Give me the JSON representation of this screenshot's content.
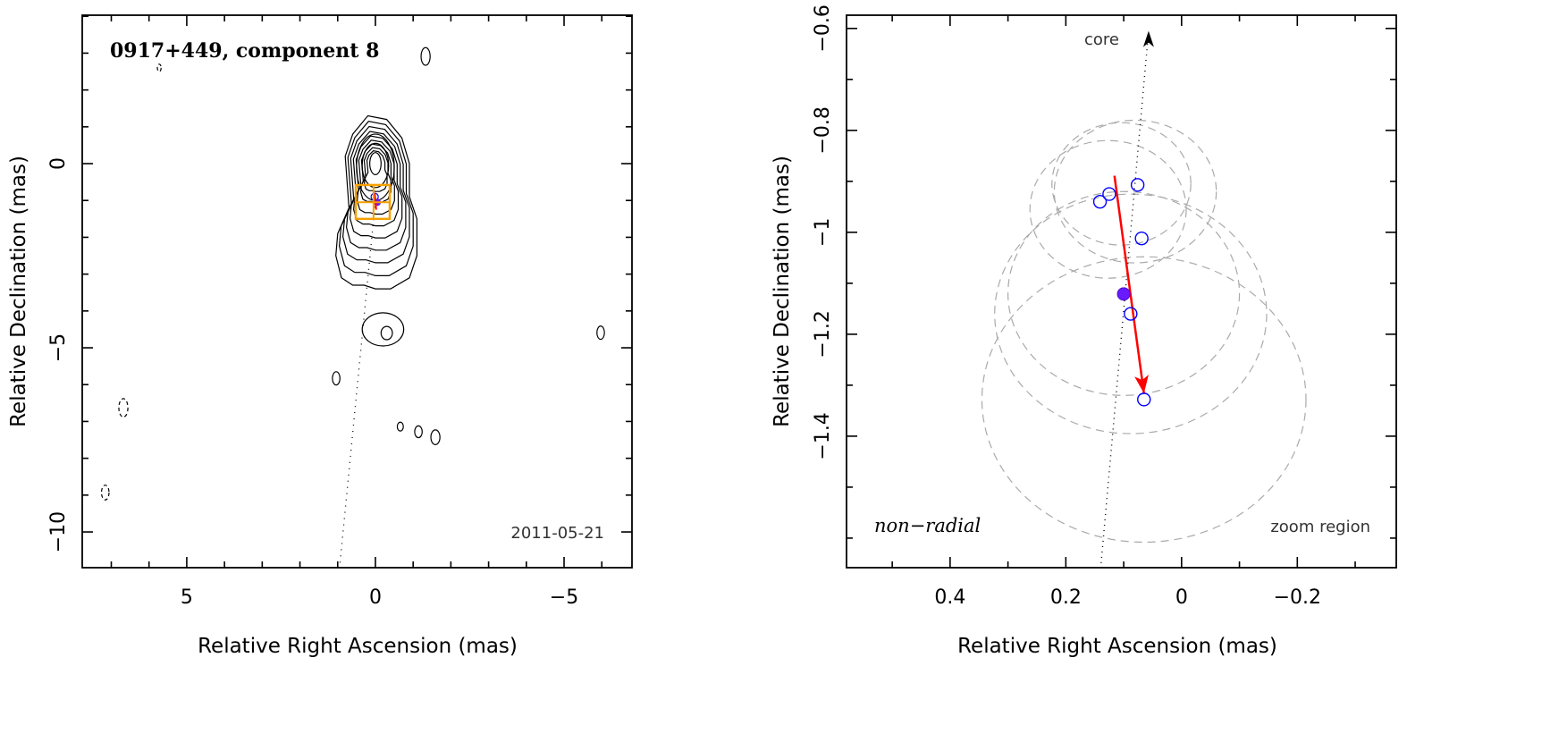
{
  "chart_data": [
    {
      "type": "contour",
      "title": "0917+449, component 8",
      "date_label": "2011-05-21",
      "xlabel": "Relative Right Ascension (mas)",
      "ylabel": "Relative Declination (mas)",
      "xlim": [
        7.77,
        -6.8
      ],
      "ylim": [
        -10.97,
        4.03
      ],
      "xticks": [
        {
          "v": 5,
          "label": "5"
        },
        {
          "v": 0,
          "label": "0"
        },
        {
          "v": -5,
          "label": "−5"
        }
      ],
      "yticks": [
        {
          "v": 0,
          "label": "0"
        },
        {
          "v": -5,
          "label": "−5"
        },
        {
          "v": -10,
          "label": "−10"
        }
      ],
      "x_minor_step": 1,
      "y_minor_step": 1,
      "outer_contour": [
        [
          0.9,
          -3.1
        ],
        [
          1.05,
          -2.5
        ],
        [
          1.0,
          -1.9
        ],
        [
          0.7,
          -1.2
        ],
        [
          0.75,
          -0.5
        ],
        [
          0.8,
          0.2
        ],
        [
          0.6,
          0.8
        ],
        [
          0.2,
          1.3
        ],
        [
          -0.3,
          1.2
        ],
        [
          -0.7,
          0.7
        ],
        [
          -0.9,
          0.0
        ],
        [
          -0.9,
          -0.9
        ],
        [
          -1.1,
          -1.5
        ],
        [
          -1.1,
          -2.5
        ],
        [
          -0.9,
          -3.1
        ],
        [
          -0.4,
          -3.4
        ],
        [
          0.0,
          -3.4
        ],
        [
          0.3,
          -3.3
        ],
        [
          0.6,
          -3.3
        ]
      ],
      "contour_levels": 9,
      "core_contours": [
        {
          "x": 0,
          "y": 0,
          "rx": 0.15,
          "ry": 0.3
        },
        {
          "x": 0,
          "y": -0.05,
          "rx": 0.35,
          "ry": 0.6
        },
        {
          "x": 0,
          "y": -0.1,
          "rx": 0.5,
          "ry": 0.9
        }
      ],
      "islands": [
        {
          "x": -0.2,
          "y": -4.5,
          "rx": 0.55,
          "ry": 0.45,
          "dashed": false
        },
        {
          "x": -0.3,
          "y": -4.6,
          "rx": 0.15,
          "ry": 0.18,
          "dashed": false
        },
        {
          "x": 1.04,
          "y": -5.83,
          "rx": 0.1,
          "ry": 0.18,
          "dashed": false
        },
        {
          "x": -0.66,
          "y": -7.14,
          "rx": 0.08,
          "ry": 0.12,
          "dashed": false
        },
        {
          "x": -1.14,
          "y": -7.28,
          "rx": 0.1,
          "ry": 0.16,
          "dashed": false
        },
        {
          "x": -1.59,
          "y": -7.43,
          "rx": 0.12,
          "ry": 0.2,
          "dashed": false
        },
        {
          "x": -1.33,
          "y": 2.91,
          "rx": 0.12,
          "ry": 0.24,
          "dashed": false
        },
        {
          "x": -5.97,
          "y": -4.59,
          "rx": 0.1,
          "ry": 0.18,
          "dashed": false
        },
        {
          "x": 6.68,
          "y": -6.63,
          "rx": 0.12,
          "ry": 0.25,
          "dashed": true
        },
        {
          "x": 7.16,
          "y": -8.93,
          "rx": 0.1,
          "ry": 0.2,
          "dashed": true
        },
        {
          "x": 5.73,
          "y": 2.6,
          "rx": 0.05,
          "ry": 0.1,
          "dashed": true
        }
      ],
      "zoom_box": {
        "x1": 0.52,
        "x2": -0.38,
        "y1": -0.58,
        "y2": -1.5,
        "cross_x": 0.05,
        "cross_y": -1.05,
        "color": "#f5a000"
      },
      "ridge_line": [
        [
          0,
          -1.0
        ],
        [
          0.95,
          -10.97
        ]
      ]
    },
    {
      "type": "scatter",
      "label_core": "core",
      "label_mode": "non−radial",
      "label_zoom": "zoom region",
      "xlabel": "Relative Right Ascension (mas)",
      "ylabel": "Relative Declination (mas)",
      "xlim": [
        0.579,
        -0.371
      ],
      "ylim": [
        -1.658,
        -0.574
      ],
      "xticks": [
        {
          "v": 0.4,
          "label": "0.4"
        },
        {
          "v": 0.2,
          "label": "0.2"
        },
        {
          "v": 0,
          "label": "0"
        },
        {
          "v": -0.2,
          "label": "−0.2"
        }
      ],
      "yticks": [
        {
          "v": -0.6,
          "label": "−0.6"
        },
        {
          "v": -0.8,
          "label": "−0.8"
        },
        {
          "v": -1.0,
          "label": "−1"
        },
        {
          "v": -1.2,
          "label": "−1.2"
        },
        {
          "v": -1.4,
          "label": "−1.4"
        }
      ],
      "x_minor_step": 0.1,
      "y_minor_step": 0.1,
      "points": [
        [
          0.141,
          -0.94
        ],
        [
          0.125,
          -0.925
        ],
        [
          0.076,
          -0.907
        ],
        [
          0.069,
          -1.012
        ],
        [
          0.088,
          -1.16
        ],
        [
          0.065,
          -1.328
        ]
      ],
      "mean_point": [
        0.1,
        -1.121
      ],
      "motion_vector": {
        "from": [
          0.116,
          -0.889
        ],
        "to": [
          0.065,
          -1.316
        ],
        "color": "#ff0000"
      },
      "core_direction": {
        "from": [
          0.139,
          -1.649
        ],
        "to": [
          0.057,
          -0.605
        ]
      },
      "error_circles": [
        {
          "x": 0.104,
          "y": -0.905,
          "r": 0.12
        },
        {
          "x": 0.08,
          "y": -0.92,
          "r": 0.14
        },
        {
          "x": 0.127,
          "y": -0.955,
          "r": 0.135
        },
        {
          "x": 0.1,
          "y": -1.12,
          "r": 0.2
        },
        {
          "x": 0.088,
          "y": -1.16,
          "r": 0.235
        },
        {
          "x": 0.065,
          "y": -1.328,
          "r": 0.28
        }
      ],
      "colors": {
        "points": "#0000ff",
        "mean": "#6a1aff",
        "circles": "#aaaaaa"
      }
    }
  ]
}
